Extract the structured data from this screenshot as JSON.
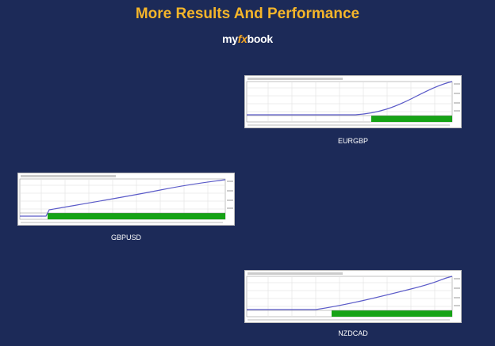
{
  "header": {
    "title": "More Results And Performance",
    "logo": [
      "my",
      "fx",
      "book"
    ]
  },
  "panels": [
    {
      "label": "EURGBP"
    },
    {
      "label": "GBPUSD"
    },
    {
      "label": "NZDCAD"
    }
  ]
}
